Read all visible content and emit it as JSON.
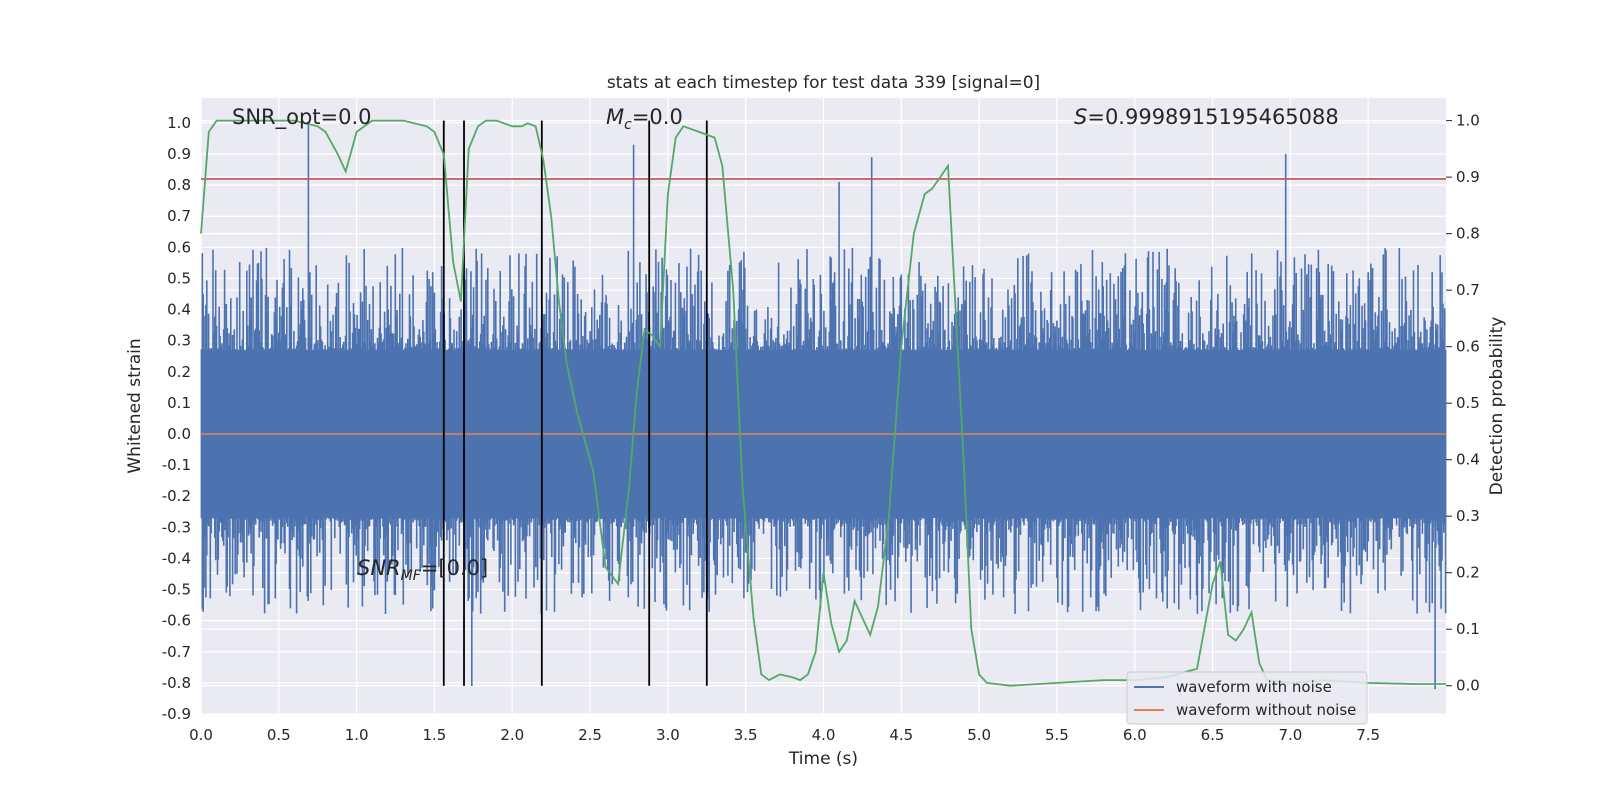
{
  "chart_data": {
    "type": "line",
    "title": "stats at each timestep for test data 339 [signal=0]",
    "xlabel": "Time (s)",
    "ylabel": "Whitened strain",
    "ylabel_right": "Detection probability",
    "xlim": [
      0.0,
      8.0
    ],
    "ylim": [
      -0.9,
      1.08
    ],
    "ylim_right": [
      -0.05,
      1.04
    ],
    "x_ticks": [
      "0.0",
      "0.5",
      "1.0",
      "1.5",
      "2.0",
      "2.5",
      "3.0",
      "3.5",
      "4.0",
      "4.5",
      "5.0",
      "5.5",
      "6.0",
      "6.5",
      "7.0",
      "7.5"
    ],
    "y_ticks": [
      "1.0",
      "0.9",
      "0.8",
      "0.7",
      "0.6",
      "0.5",
      "0.4",
      "0.3",
      "0.2",
      "0.1",
      "0.0",
      "-0.1",
      "-0.2",
      "-0.3",
      "-0.4",
      "-0.5",
      "-0.6",
      "-0.7",
      "-0.8",
      "-0.9"
    ],
    "y_ticks_right": [
      "1.0",
      "0.9",
      "0.8",
      "0.7",
      "0.6",
      "0.5",
      "0.4",
      "0.3",
      "0.2",
      "0.1",
      "0.0"
    ],
    "grid": true,
    "legend_position": "lower-right",
    "annotations": {
      "snr_opt": "SNR_opt=0.0",
      "mc_symbol": "M",
      "mc_sub": "c",
      "mc_value": "=0.0",
      "s_symbol": "S",
      "s_value": "=0.9998915195465088",
      "snrmf_symbol": "SNR",
      "snrmf_sub": "MF",
      "snrmf_value": "=[0.0]"
    },
    "threshold_strain": 0.82,
    "vertical_markers_s": [
      1.56,
      1.69,
      2.19,
      2.88,
      3.25
    ],
    "noise_envelope": {
      "core_upper": 0.27,
      "core_lower": -0.27,
      "typical_peak_upper": 0.6,
      "typical_peak_lower": -0.58,
      "notable_spikes": [
        {
          "x": 0.69,
          "y": 1.0
        },
        {
          "x": 1.74,
          "y": -0.81
        },
        {
          "x": 2.78,
          "y": 0.93
        },
        {
          "x": 4.1,
          "y": 0.81
        },
        {
          "x": 4.31,
          "y": 0.89
        },
        {
          "x": 6.97,
          "y": 0.9
        },
        {
          "x": 7.93,
          "y": -0.82
        }
      ]
    },
    "series": [
      {
        "name": "waveform with noise",
        "color": "#4c72b0",
        "kind": "noise"
      },
      {
        "name": "waveform without noise",
        "color": "#dd8452",
        "values": [
          [
            0.0,
            0.0
          ],
          [
            8.0,
            0.0
          ]
        ]
      },
      {
        "color": "#c44e52",
        "kind": "threshold"
      },
      {
        "color": "#55a868",
        "axis": "right",
        "points": [
          [
            0.0,
            0.8
          ],
          [
            0.05,
            0.98
          ],
          [
            0.1,
            1.0
          ],
          [
            0.2,
            1.0
          ],
          [
            0.4,
            1.0
          ],
          [
            0.6,
            1.0
          ],
          [
            0.75,
            0.99
          ],
          [
            0.8,
            0.98
          ],
          [
            0.88,
            0.94
          ],
          [
            0.93,
            0.91
          ],
          [
            1.0,
            0.98
          ],
          [
            1.1,
            1.0
          ],
          [
            1.3,
            1.0
          ],
          [
            1.45,
            0.99
          ],
          [
            1.5,
            0.98
          ],
          [
            1.56,
            0.94
          ],
          [
            1.62,
            0.75
          ],
          [
            1.67,
            0.68
          ],
          [
            1.72,
            0.95
          ],
          [
            1.78,
            0.99
          ],
          [
            1.83,
            1.0
          ],
          [
            1.9,
            1.0
          ],
          [
            2.0,
            0.99
          ],
          [
            2.06,
            0.99
          ],
          [
            2.1,
            0.995
          ],
          [
            2.15,
            0.99
          ],
          [
            2.2,
            0.93
          ],
          [
            2.25,
            0.83
          ],
          [
            2.3,
            0.68
          ],
          [
            2.35,
            0.57
          ],
          [
            2.42,
            0.48
          ],
          [
            2.52,
            0.38
          ],
          [
            2.6,
            0.21
          ],
          [
            2.68,
            0.18
          ],
          [
            2.75,
            0.35
          ],
          [
            2.8,
            0.52
          ],
          [
            2.85,
            0.63
          ],
          [
            2.9,
            0.62
          ],
          [
            2.95,
            0.6
          ],
          [
            3.0,
            0.87
          ],
          [
            3.05,
            0.97
          ],
          [
            3.1,
            0.99
          ],
          [
            3.2,
            0.98
          ],
          [
            3.3,
            0.97
          ],
          [
            3.35,
            0.92
          ],
          [
            3.42,
            0.7
          ],
          [
            3.48,
            0.35
          ],
          [
            3.55,
            0.12
          ],
          [
            3.6,
            0.02
          ],
          [
            3.65,
            0.01
          ],
          [
            3.72,
            0.02
          ],
          [
            3.8,
            0.015
          ],
          [
            3.85,
            0.01
          ],
          [
            3.9,
            0.02
          ],
          [
            3.95,
            0.06
          ],
          [
            4.0,
            0.2
          ],
          [
            4.05,
            0.11
          ],
          [
            4.1,
            0.06
          ],
          [
            4.15,
            0.08
          ],
          [
            4.2,
            0.15
          ],
          [
            4.25,
            0.12
          ],
          [
            4.3,
            0.09
          ],
          [
            4.35,
            0.14
          ],
          [
            4.42,
            0.3
          ],
          [
            4.5,
            0.6
          ],
          [
            4.58,
            0.8
          ],
          [
            4.65,
            0.87
          ],
          [
            4.7,
            0.88
          ],
          [
            4.75,
            0.9
          ],
          [
            4.8,
            0.92
          ],
          [
            4.85,
            0.66
          ],
          [
            4.9,
            0.4
          ],
          [
            4.95,
            0.1
          ],
          [
            5.0,
            0.02
          ],
          [
            5.05,
            0.005
          ],
          [
            5.2,
            0.0
          ],
          [
            5.5,
            0.005
          ],
          [
            5.8,
            0.01
          ],
          [
            6.0,
            0.01
          ],
          [
            6.2,
            0.015
          ],
          [
            6.4,
            0.03
          ],
          [
            6.5,
            0.18
          ],
          [
            6.55,
            0.22
          ],
          [
            6.6,
            0.09
          ],
          [
            6.65,
            0.08
          ],
          [
            6.7,
            0.1
          ],
          [
            6.75,
            0.13
          ],
          [
            6.8,
            0.04
          ],
          [
            6.85,
            0.01
          ],
          [
            7.0,
            0.005
          ],
          [
            7.2,
            0.01
          ],
          [
            7.5,
            0.005
          ],
          [
            7.8,
            0.003
          ],
          [
            8.0,
            0.003
          ]
        ]
      }
    ]
  }
}
